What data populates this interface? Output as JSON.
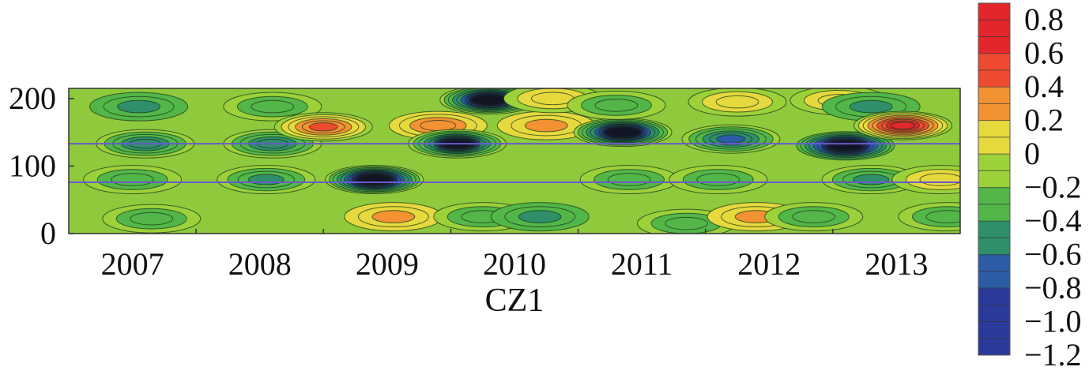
{
  "chart_data": {
    "type": "heatmap",
    "title": "",
    "xlabel": "CZ1",
    "ylabel": "",
    "x_tick_labels": [
      "2007",
      "2008",
      "2009",
      "2010",
      "2011",
      "2012",
      "2013"
    ],
    "xlim": [
      2006.5,
      2013.5
    ],
    "ylim": [
      0,
      215
    ],
    "y_ticks": [
      0,
      100,
      200
    ],
    "y_tick_labels": [
      "0",
      "100",
      "200"
    ],
    "reference_lines_y": [
      76,
      133
    ],
    "reference_line_color": "#6a5acd",
    "colorbar": {
      "min": -1.2,
      "max": 0.9,
      "tick_values": [
        0.8,
        0.6,
        0.4,
        0.2,
        0,
        -0.2,
        -0.4,
        -0.6,
        -0.8,
        -1.0,
        -1.2
      ],
      "tick_labels": [
        "0.8",
        "0.6",
        "0.4",
        "0.2",
        "0",
        "−0.2",
        "−0.4",
        "−0.6",
        "−0.8",
        "−1.0",
        "−1.2"
      ],
      "bands": [
        {
          "from": 0.6,
          "to": 0.9,
          "color": "#e3262b"
        },
        {
          "from": 0.4,
          "to": 0.6,
          "color": "#ee4a30"
        },
        {
          "from": 0.2,
          "to": 0.4,
          "color": "#f29233"
        },
        {
          "from": 0.0,
          "to": 0.2,
          "color": "#e6d93e"
        },
        {
          "from": -0.2,
          "to": 0.0,
          "color": "#9cd13a"
        },
        {
          "from": -0.4,
          "to": -0.2,
          "color": "#52b648"
        },
        {
          "from": -0.6,
          "to": -0.4,
          "color": "#2e8f6a"
        },
        {
          "from": -0.8,
          "to": -0.6,
          "color": "#2c5ca6"
        },
        {
          "from": -1.2,
          "to": -0.8,
          "color": "#2b3a9a"
        }
      ]
    },
    "features": [
      {
        "x": 2007.05,
        "y": 188,
        "value": -0.45
      },
      {
        "x": 2007.1,
        "y": 133,
        "value": -0.6
      },
      {
        "x": 2007.0,
        "y": 80,
        "value": -0.4
      },
      {
        "x": 2007.15,
        "y": 22,
        "value": -0.4
      },
      {
        "x": 2008.1,
        "y": 188,
        "value": -0.35
      },
      {
        "x": 2008.1,
        "y": 133,
        "value": -0.55
      },
      {
        "x": 2008.05,
        "y": 80,
        "value": -0.5
      },
      {
        "x": 2008.5,
        "y": 158,
        "value": 0.5
      },
      {
        "x": 2008.9,
        "y": 80,
        "value": -1.2
      },
      {
        "x": 2009.05,
        "y": 25,
        "value": 0.2
      },
      {
        "x": 2009.4,
        "y": 160,
        "value": 0.35
      },
      {
        "x": 2009.55,
        "y": 133,
        "value": -0.9
      },
      {
        "x": 2009.75,
        "y": 25,
        "value": -0.4
      },
      {
        "x": 2009.8,
        "y": 198,
        "value": -1.1
      },
      {
        "x": 2010.25,
        "y": 160,
        "value": 0.25
      },
      {
        "x": 2010.2,
        "y": 25,
        "value": -0.45
      },
      {
        "x": 2010.3,
        "y": 200,
        "value": 0.1
      },
      {
        "x": 2010.85,
        "y": 150,
        "value": -1.1
      },
      {
        "x": 2010.9,
        "y": 80,
        "value": -0.4
      },
      {
        "x": 2010.8,
        "y": 190,
        "value": -0.3
      },
      {
        "x": 2011.35,
        "y": 15,
        "value": -0.35
      },
      {
        "x": 2011.75,
        "y": 195,
        "value": 0.1
      },
      {
        "x": 2011.7,
        "y": 140,
        "value": -0.7
      },
      {
        "x": 2011.6,
        "y": 80,
        "value": -0.4
      },
      {
        "x": 2011.9,
        "y": 25,
        "value": 0.25
      },
      {
        "x": 2012.35,
        "y": 25,
        "value": -0.4
      },
      {
        "x": 2012.55,
        "y": 197,
        "value": 0.05
      },
      {
        "x": 2012.6,
        "y": 130,
        "value": -1.15
      },
      {
        "x": 2012.8,
        "y": 80,
        "value": -0.5
      },
      {
        "x": 2012.8,
        "y": 188,
        "value": -0.45
      },
      {
        "x": 2013.05,
        "y": 160,
        "value": 0.75
      },
      {
        "x": 2013.35,
        "y": 80,
        "value": 0.1
      },
      {
        "x": 2013.4,
        "y": 25,
        "value": -0.3
      }
    ]
  }
}
